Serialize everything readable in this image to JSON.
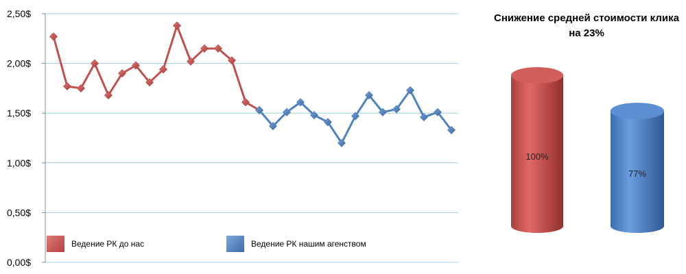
{
  "chart_data": [
    {
      "type": "line",
      "ylim": [
        0,
        2.5
      ],
      "yticks": [
        0,
        0.5,
        1.0,
        1.5,
        2.0,
        2.5
      ],
      "ytick_labels": [
        "0,00$",
        "0,50$",
        "1,00$",
        "1,50$",
        "2,00$",
        "2,50$"
      ],
      "grid": true,
      "legend_position": "bottom",
      "x": [
        1,
        2,
        3,
        4,
        5,
        6,
        7,
        8,
        9,
        10,
        11,
        12,
        13,
        14,
        15,
        16,
        17,
        18,
        19,
        20,
        21,
        22,
        23,
        24,
        25,
        26,
        27,
        28,
        29,
        30
      ],
      "series": [
        {
          "name": "Ведение РК до нас",
          "color": "#c0504d",
          "x": [
            1,
            2,
            3,
            4,
            5,
            6,
            7,
            8,
            9,
            10,
            11,
            12,
            13,
            14,
            15,
            16
          ],
          "values": [
            2.27,
            1.77,
            1.75,
            2.0,
            1.68,
            1.9,
            1.98,
            1.81,
            1.94,
            2.38,
            2.02,
            2.15,
            2.15,
            2.03,
            1.61,
            1.53
          ]
        },
        {
          "name": "Ведение РК нашим агенством",
          "color": "#4f81bd",
          "x": [
            16,
            17,
            18,
            19,
            20,
            21,
            22,
            23,
            24,
            25,
            26,
            27,
            28,
            29,
            30
          ],
          "values": [
            1.53,
            1.37,
            1.51,
            1.61,
            1.48,
            1.41,
            1.2,
            1.47,
            1.68,
            1.51,
            1.54,
            1.73,
            1.46,
            1.51,
            1.33
          ]
        }
      ]
    },
    {
      "type": "bar",
      "title": "Снижение средней стоимости клика на 23%",
      "categories": [
        "Ведение РК до нас",
        "Ведение РК нашим агенством"
      ],
      "values": [
        100,
        77
      ],
      "labels": [
        "100%",
        "77%"
      ],
      "colors": [
        "#c0504d",
        "#4f81bd"
      ]
    }
  ]
}
